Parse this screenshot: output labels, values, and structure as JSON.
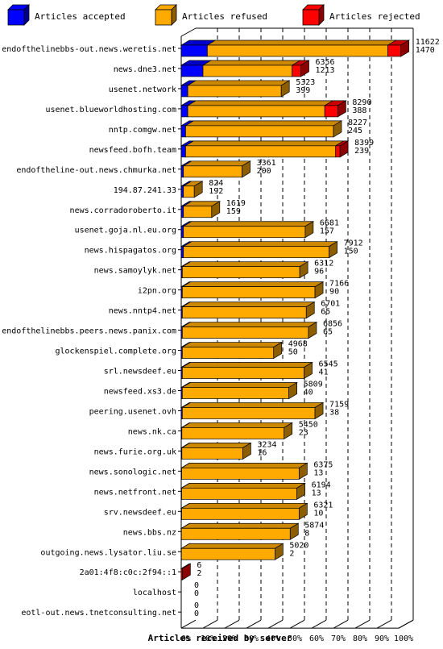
{
  "chart_data": {
    "type": "bar",
    "orientation": "horizontal",
    "stacked": true,
    "percent_scale": true,
    "xlabel": "Articles received by server",
    "xlim": [
      0,
      100
    ],
    "xticks": [
      "0%",
      "10%",
      "20%",
      "30%",
      "40%",
      "50%",
      "60%",
      "70%",
      "80%",
      "90%",
      "100%"
    ],
    "grid": true,
    "legend_position": "top",
    "series": [
      {
        "name": "Articles accepted",
        "color": "#0000ff"
      },
      {
        "name": "Articles refused",
        "color": "#ffaa00"
      },
      {
        "name": "Articles rejected",
        "color": "#ff0000"
      }
    ],
    "rows": [
      {
        "server": "endofthelinebbs-out.news.weretis.net",
        "accepted_pct": 12,
        "refused_pct": 83,
        "rejected_pct": 6,
        "label_top": "11622",
        "label_bottom": "1470"
      },
      {
        "server": "news.dne3.net",
        "accepted_pct": 10,
        "refused_pct": 41,
        "rejected_pct": 4,
        "label_top": "6356",
        "label_bottom": "1213"
      },
      {
        "server": "usenet.network",
        "accepted_pct": 3,
        "refused_pct": 43,
        "rejected_pct": 0,
        "label_top": "5323",
        "label_bottom": "399"
      },
      {
        "server": "usenet.blueworldhosting.com",
        "accepted_pct": 3,
        "refused_pct": 63,
        "rejected_pct": 6,
        "label_top": "8290",
        "label_bottom": "388"
      },
      {
        "server": "nntp.comgw.net",
        "accepted_pct": 2,
        "refused_pct": 68,
        "rejected_pct": 0,
        "label_top": "8227",
        "label_bottom": "245"
      },
      {
        "server": "newsfeed.bofh.team",
        "accepted_pct": 2,
        "refused_pct": 69,
        "rejected_pct": 2,
        "label_top": "8399",
        "label_bottom": "239"
      },
      {
        "server": "endoftheline-out.news.chmurka.net",
        "accepted_pct": 1,
        "refused_pct": 27,
        "rejected_pct": 0,
        "label_top": "3361",
        "label_bottom": "200"
      },
      {
        "server": "194.87.241.33",
        "accepted_pct": 1,
        "refused_pct": 5,
        "rejected_pct": 0,
        "label_top": "824",
        "label_bottom": "192"
      },
      {
        "server": "news.corradoroberto.it",
        "accepted_pct": 1,
        "refused_pct": 13,
        "rejected_pct": 0,
        "label_top": "1619",
        "label_bottom": "159"
      },
      {
        "server": "usenet.goja.nl.eu.org",
        "accepted_pct": 1,
        "refused_pct": 56,
        "rejected_pct": 0,
        "label_top": "6681",
        "label_bottom": "157"
      },
      {
        "server": "news.hispagatos.org",
        "accepted_pct": 1,
        "refused_pct": 67,
        "rejected_pct": 0,
        "label_top": "7912",
        "label_bottom": "150"
      },
      {
        "server": "news.samoylyk.net",
        "accepted_pct": 0.5,
        "refused_pct": 54,
        "rejected_pct": 0,
        "label_top": "6312",
        "label_bottom": "96"
      },
      {
        "server": "i2pn.org",
        "accepted_pct": 0.5,
        "refused_pct": 61,
        "rejected_pct": 0,
        "label_top": "7166",
        "label_bottom": "90"
      },
      {
        "server": "news.nntp4.net",
        "accepted_pct": 0.5,
        "refused_pct": 57,
        "rejected_pct": 0,
        "label_top": "6701",
        "label_bottom": "65"
      },
      {
        "server": "endofthelinebbs.peers.news.panix.com",
        "accepted_pct": 0.5,
        "refused_pct": 58,
        "rejected_pct": 0,
        "label_top": "6856",
        "label_bottom": "65"
      },
      {
        "server": "glockenspiel.complete.org",
        "accepted_pct": 0.5,
        "refused_pct": 42,
        "rejected_pct": 0,
        "label_top": "4968",
        "label_bottom": "50"
      },
      {
        "server": "srl.newsdeef.eu",
        "accepted_pct": 0.5,
        "refused_pct": 56,
        "rejected_pct": 0,
        "label_top": "6545",
        "label_bottom": "41"
      },
      {
        "server": "newsfeed.xs3.de",
        "accepted_pct": 0.5,
        "refused_pct": 49,
        "rejected_pct": 0,
        "label_top": "5809",
        "label_bottom": "40"
      },
      {
        "server": "peering.usenet.ovh",
        "accepted_pct": 0.5,
        "refused_pct": 61,
        "rejected_pct": 0,
        "label_top": "7159",
        "label_bottom": "38"
      },
      {
        "server": "news.nk.ca",
        "accepted_pct": 0.3,
        "refused_pct": 47,
        "rejected_pct": 0,
        "label_top": "5450",
        "label_bottom": "23"
      },
      {
        "server": "news.furie.org.uk",
        "accepted_pct": 0.3,
        "refused_pct": 28,
        "rejected_pct": 0,
        "label_top": "3234",
        "label_bottom": "16"
      },
      {
        "server": "news.sonologic.net",
        "accepted_pct": 0.2,
        "refused_pct": 54,
        "rejected_pct": 0,
        "label_top": "6375",
        "label_bottom": "13"
      },
      {
        "server": "news.netfront.net",
        "accepted_pct": 0.2,
        "refused_pct": 53,
        "rejected_pct": 0,
        "label_top": "6194",
        "label_bottom": "13"
      },
      {
        "server": "srv.newsdeef.eu",
        "accepted_pct": 0.2,
        "refused_pct": 54,
        "rejected_pct": 0,
        "label_top": "6321",
        "label_bottom": "10"
      },
      {
        "server": "news.bbs.nz",
        "accepted_pct": 0.1,
        "refused_pct": 50,
        "rejected_pct": 0,
        "label_top": "5874",
        "label_bottom": "8"
      },
      {
        "server": "outgoing.news.lysator.liu.se",
        "accepted_pct": 0.1,
        "refused_pct": 43,
        "rejected_pct": 0,
        "label_top": "5020",
        "label_bottom": "2"
      },
      {
        "server": "2a01:4f8:c0c:2f94::1",
        "accepted_pct": 0,
        "refused_pct": 0,
        "rejected_pct": 0.5,
        "label_top": "6",
        "label_bottom": "2"
      },
      {
        "server": "localhost",
        "accepted_pct": 0,
        "refused_pct": 0,
        "rejected_pct": 0,
        "label_top": "0",
        "label_bottom": "0"
      },
      {
        "server": "eotl-out.news.tnetconsulting.net",
        "accepted_pct": 0,
        "refused_pct": 0,
        "rejected_pct": 0,
        "label_top": "0",
        "label_bottom": "0"
      }
    ]
  }
}
